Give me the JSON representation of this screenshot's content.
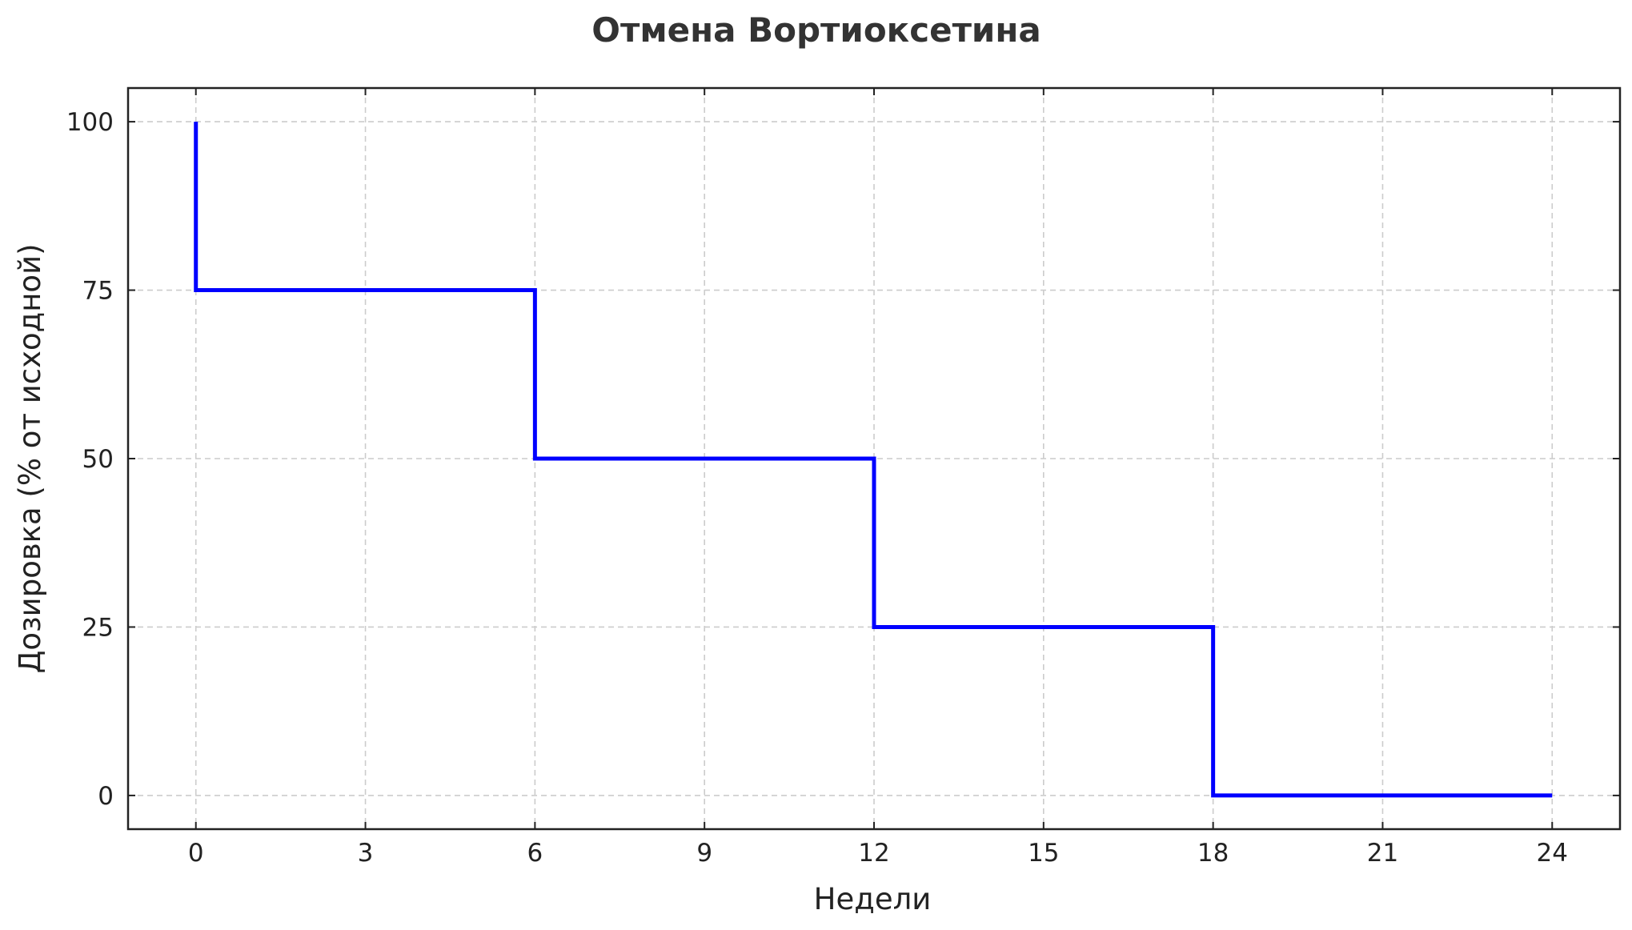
{
  "chart_data": {
    "type": "line",
    "step": "post",
    "title": "Отмена Вортиоксетина",
    "xlabel": "Недели",
    "ylabel": "Дозировка (% от исходной)",
    "xlim": [
      -1.2,
      25.2
    ],
    "ylim": [
      -5,
      105
    ],
    "xticks": [
      0,
      3,
      6,
      9,
      12,
      15,
      18,
      21,
      24
    ],
    "xtick_labels": [
      "0",
      "3",
      "6",
      "9",
      "12",
      "15",
      "18",
      "21",
      "24"
    ],
    "yticks": [
      0,
      25,
      50,
      75,
      100
    ],
    "ytick_labels": [
      "0",
      "25",
      "50",
      "75",
      "100"
    ],
    "grid": true,
    "series": [
      {
        "color": "#0000ff",
        "points": [
          {
            "x": 0,
            "y": 100
          },
          {
            "x": 0,
            "y": 75
          },
          {
            "x": 6,
            "y": 75
          },
          {
            "x": 6,
            "y": 50
          },
          {
            "x": 12,
            "y": 50
          },
          {
            "x": 12,
            "y": 25
          },
          {
            "x": 18,
            "y": 25
          },
          {
            "x": 18,
            "y": 0
          },
          {
            "x": 24,
            "y": 0
          }
        ]
      }
    ]
  }
}
